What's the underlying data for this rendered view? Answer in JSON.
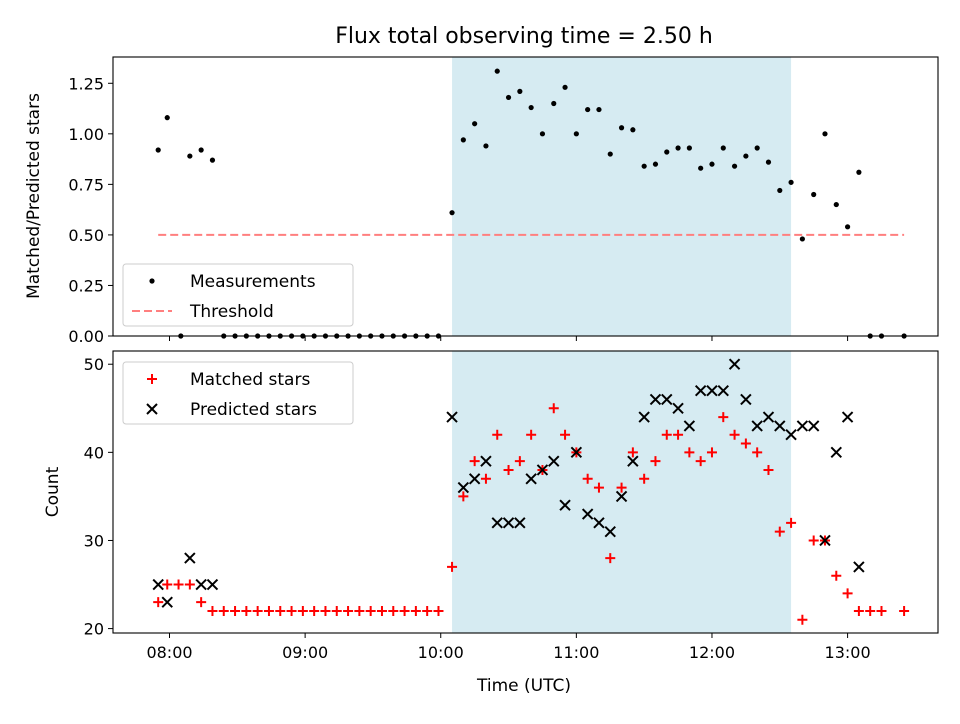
{
  "chart_data": {
    "type": "scatter",
    "title": "Flux total observing time = 2.50 h",
    "xlabel": "Time (UTC)",
    "x_ticks": [
      "08:00",
      "09:00",
      "10:00",
      "11:00",
      "12:00",
      "13:00"
    ],
    "x_range": [
      "07:35",
      "13:40"
    ],
    "shaded_interval": [
      "10:05",
      "12:35"
    ],
    "shade_color": "#add8e6",
    "panels": [
      {
        "name": "ratio",
        "ylabel": "Matched/Predicted stars",
        "ylim": [
          0,
          1.38
        ],
        "y_ticks": [
          "0.00",
          "0.25",
          "0.50",
          "0.75",
          "1.00",
          "1.25"
        ],
        "legend_position": "lower-left",
        "series": [
          {
            "name": "Measurements",
            "marker": "dot",
            "color": "#000000",
            "points": [
              [
                "07:55",
                0.92
              ],
              [
                "07:59",
                1.08
              ],
              [
                "08:05",
                0.0
              ],
              [
                "08:09",
                0.89
              ],
              [
                "08:14",
                0.92
              ],
              [
                "08:19",
                0.87
              ],
              [
                "08:24",
                0.0
              ],
              [
                "08:29",
                0.0
              ],
              [
                "08:34",
                0.0
              ],
              [
                "08:39",
                0.0
              ],
              [
                "08:44",
                0.0
              ],
              [
                "08:49",
                0.0
              ],
              [
                "08:54",
                0.0
              ],
              [
                "08:59",
                0.0
              ],
              [
                "09:04",
                0.0
              ],
              [
                "09:09",
                0.0
              ],
              [
                "09:14",
                0.0
              ],
              [
                "09:19",
                0.0
              ],
              [
                "09:24",
                0.0
              ],
              [
                "09:29",
                0.0
              ],
              [
                "09:34",
                0.0
              ],
              [
                "09:39",
                0.0
              ],
              [
                "09:44",
                0.0
              ],
              [
                "09:49",
                0.0
              ],
              [
                "09:54",
                0.0
              ],
              [
                "09:59",
                0.0
              ],
              [
                "10:05",
                0.61
              ],
              [
                "10:10",
                0.97
              ],
              [
                "10:15",
                1.05
              ],
              [
                "10:20",
                0.94
              ],
              [
                "10:25",
                1.31
              ],
              [
                "10:30",
                1.18
              ],
              [
                "10:35",
                1.21
              ],
              [
                "10:40",
                1.13
              ],
              [
                "10:45",
                1.0
              ],
              [
                "10:50",
                1.15
              ],
              [
                "10:55",
                1.23
              ],
              [
                "11:00",
                1.0
              ],
              [
                "11:05",
                1.12
              ],
              [
                "11:10",
                1.12
              ],
              [
                "11:15",
                0.9
              ],
              [
                "11:20",
                1.03
              ],
              [
                "11:25",
                1.02
              ],
              [
                "11:30",
                0.84
              ],
              [
                "11:35",
                0.85
              ],
              [
                "11:40",
                0.91
              ],
              [
                "11:45",
                0.93
              ],
              [
                "11:50",
                0.93
              ],
              [
                "11:55",
                0.83
              ],
              [
                "12:00",
                0.85
              ],
              [
                "12:05",
                0.93
              ],
              [
                "12:10",
                0.84
              ],
              [
                "12:15",
                0.89
              ],
              [
                "12:20",
                0.93
              ],
              [
                "12:25",
                0.86
              ],
              [
                "12:30",
                0.72
              ],
              [
                "12:35",
                0.76
              ],
              [
                "12:40",
                0.48
              ],
              [
                "12:45",
                0.7
              ],
              [
                "12:50",
                1.0
              ],
              [
                "12:55",
                0.65
              ],
              [
                "13:00",
                0.54
              ],
              [
                "13:05",
                0.81
              ],
              [
                "13:10",
                0.0
              ],
              [
                "13:15",
                0.0
              ],
              [
                "13:25",
                0.0
              ]
            ]
          },
          {
            "name": "Threshold",
            "marker": "dashed-line",
            "color": "#ff7f7f",
            "points": [
              [
                "07:55",
                0.5
              ],
              [
                "13:25",
                0.5
              ]
            ]
          }
        ]
      },
      {
        "name": "counts",
        "ylabel": "Count",
        "ylim": [
          19.5,
          51.5
        ],
        "y_ticks": [
          "20",
          "30",
          "40",
          "50"
        ],
        "legend_position": "upper-left",
        "series": [
          {
            "name": "Matched stars",
            "marker": "plus",
            "color": "#ff0000",
            "points": [
              [
                "07:55",
                23
              ],
              [
                "07:59",
                25
              ],
              [
                "08:04",
                25
              ],
              [
                "08:09",
                25
              ],
              [
                "08:14",
                23
              ],
              [
                "08:19",
                22
              ],
              [
                "08:24",
                22
              ],
              [
                "08:29",
                22
              ],
              [
                "08:34",
                22
              ],
              [
                "08:39",
                22
              ],
              [
                "08:44",
                22
              ],
              [
                "08:49",
                22
              ],
              [
                "08:54",
                22
              ],
              [
                "08:59",
                22
              ],
              [
                "09:04",
                22
              ],
              [
                "09:09",
                22
              ],
              [
                "09:14",
                22
              ],
              [
                "09:19",
                22
              ],
              [
                "09:24",
                22
              ],
              [
                "09:29",
                22
              ],
              [
                "09:34",
                22
              ],
              [
                "09:39",
                22
              ],
              [
                "09:44",
                22
              ],
              [
                "09:49",
                22
              ],
              [
                "09:54",
                22
              ],
              [
                "09:59",
                22
              ],
              [
                "10:05",
                27
              ],
              [
                "10:10",
                35
              ],
              [
                "10:15",
                39
              ],
              [
                "10:20",
                37
              ],
              [
                "10:25",
                42
              ],
              [
                "10:30",
                38
              ],
              [
                "10:35",
                39
              ],
              [
                "10:40",
                42
              ],
              [
                "10:45",
                38
              ],
              [
                "10:50",
                45
              ],
              [
                "10:55",
                42
              ],
              [
                "11:00",
                40
              ],
              [
                "11:05",
                37
              ],
              [
                "11:10",
                36
              ],
              [
                "11:15",
                28
              ],
              [
                "11:20",
                36
              ],
              [
                "11:25",
                40
              ],
              [
                "11:30",
                37
              ],
              [
                "11:35",
                39
              ],
              [
                "11:40",
                42
              ],
              [
                "11:45",
                42
              ],
              [
                "11:50",
                40
              ],
              [
                "11:55",
                39
              ],
              [
                "12:00",
                40
              ],
              [
                "12:05",
                44
              ],
              [
                "12:10",
                42
              ],
              [
                "12:15",
                41
              ],
              [
                "12:20",
                40
              ],
              [
                "12:25",
                38
              ],
              [
                "12:30",
                31
              ],
              [
                "12:35",
                32
              ],
              [
                "12:40",
                21
              ],
              [
                "12:45",
                30
              ],
              [
                "12:50",
                30
              ],
              [
                "12:55",
                26
              ],
              [
                "13:00",
                24
              ],
              [
                "13:05",
                22
              ],
              [
                "13:10",
                22
              ],
              [
                "13:15",
                22
              ],
              [
                "13:25",
                22
              ]
            ]
          },
          {
            "name": "Predicted stars",
            "marker": "x",
            "color": "#000000",
            "points": [
              [
                "07:55",
                25
              ],
              [
                "07:59",
                23
              ],
              [
                "08:09",
                28
              ],
              [
                "08:14",
                25
              ],
              [
                "08:19",
                25
              ],
              [
                "10:05",
                44
              ],
              [
                "10:10",
                36
              ],
              [
                "10:15",
                37
              ],
              [
                "10:20",
                39
              ],
              [
                "10:25",
                32
              ],
              [
                "10:30",
                32
              ],
              [
                "10:35",
                32
              ],
              [
                "10:40",
                37
              ],
              [
                "10:45",
                38
              ],
              [
                "10:50",
                39
              ],
              [
                "10:55",
                34
              ],
              [
                "11:00",
                40
              ],
              [
                "11:05",
                33
              ],
              [
                "11:10",
                32
              ],
              [
                "11:15",
                31
              ],
              [
                "11:20",
                35
              ],
              [
                "11:25",
                39
              ],
              [
                "11:30",
                44
              ],
              [
                "11:35",
                46
              ],
              [
                "11:40",
                46
              ],
              [
                "11:45",
                45
              ],
              [
                "11:50",
                43
              ],
              [
                "11:55",
                47
              ],
              [
                "12:00",
                47
              ],
              [
                "12:05",
                47
              ],
              [
                "12:10",
                50
              ],
              [
                "12:15",
                46
              ],
              [
                "12:20",
                43
              ],
              [
                "12:25",
                44
              ],
              [
                "12:30",
                43
              ],
              [
                "12:35",
                42
              ],
              [
                "12:40",
                43
              ],
              [
                "12:45",
                43
              ],
              [
                "12:50",
                30
              ],
              [
                "12:55",
                40
              ],
              [
                "13:00",
                44
              ],
              [
                "13:05",
                27
              ]
            ]
          }
        ]
      }
    ]
  }
}
